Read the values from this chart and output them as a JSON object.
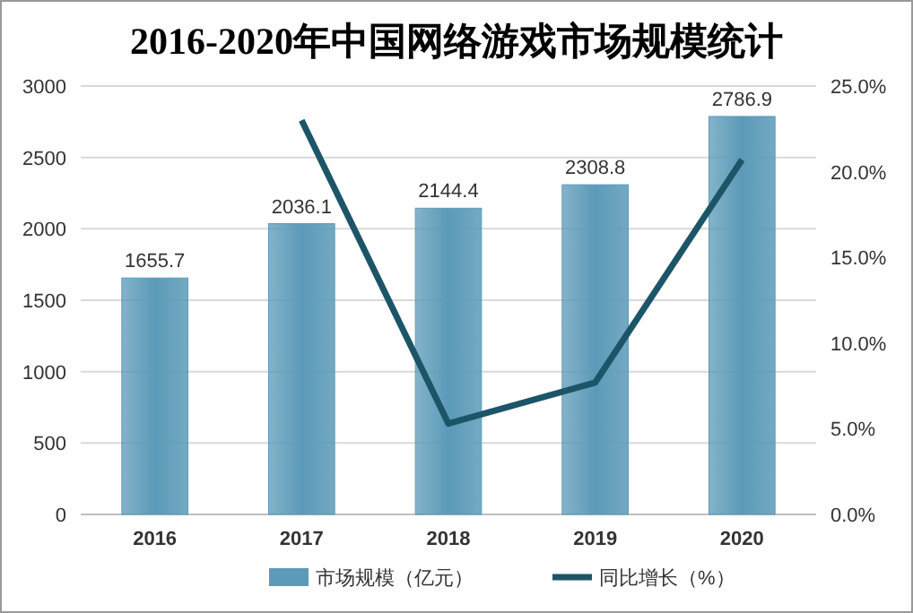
{
  "chart_data": {
    "type": "bar",
    "title": "2016-2020年中国网络游戏市场规模统计",
    "categories": [
      "2016",
      "2017",
      "2018",
      "2019",
      "2020"
    ],
    "series": [
      {
        "name": "市场规模（亿元）",
        "color": "#5b9ab8",
        "values": [
          1655.7,
          2036.1,
          2144.4,
          2308.8,
          2786.9
        ],
        "value_labels": [
          "1655.7",
          "2036.1",
          "2144.4",
          "2308.8",
          "2786.9"
        ]
      },
      {
        "name": "同比增长（%）",
        "type": "line",
        "axis": "y2",
        "color": "#1d5568",
        "values": [
          null,
          23.0,
          5.3,
          7.7,
          20.7
        ]
      }
    ],
    "ylim": [
      0,
      3000
    ],
    "yticks": [
      0,
      500,
      1000,
      1500,
      2000,
      2500,
      3000
    ],
    "y2lim": [
      0,
      25
    ],
    "y2ticks": [
      {
        "value": 0,
        "label": "0.0%"
      },
      {
        "value": 5,
        "label": "5.0%"
      },
      {
        "value": 10,
        "label": "10.0%"
      },
      {
        "value": 15,
        "label": "15.0%"
      },
      {
        "value": 20,
        "label": "20.0%"
      },
      {
        "value": 25,
        "label": "25.0%"
      }
    ],
    "grid": "y",
    "legend": "bottom",
    "marker": "none"
  }
}
